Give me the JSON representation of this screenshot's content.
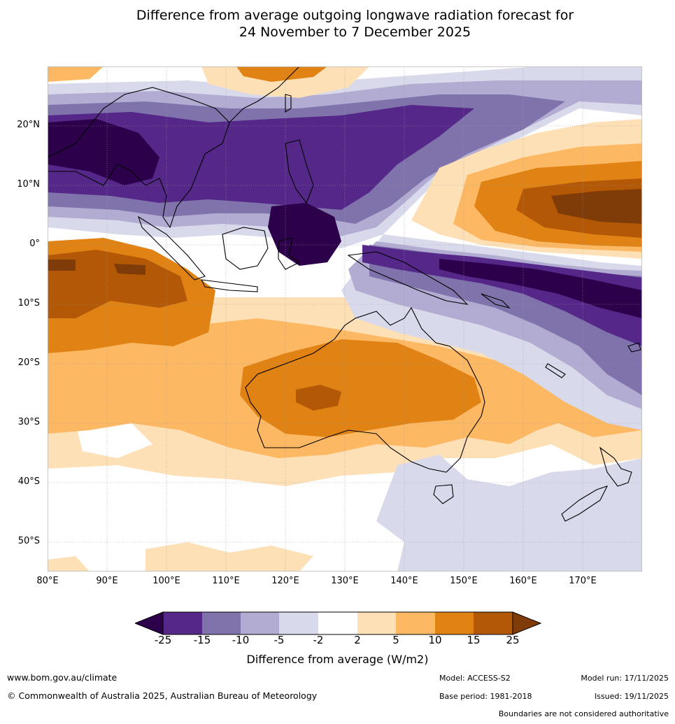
{
  "title": {
    "line1": "Difference from average outgoing longwave radiation forecast for",
    "line2": "24 November to 7 December 2025"
  },
  "map": {
    "lat_labels": [
      "20°N",
      "10°N",
      "0°",
      "10°S",
      "20°S",
      "30°S",
      "40°S",
      "50°S"
    ],
    "lon_labels": [
      "80°E",
      "90°E",
      "100°E",
      "110°E",
      "120°E",
      "130°E",
      "140°E",
      "150°E",
      "160°E",
      "170°E"
    ],
    "extent": {
      "lon_min": 80,
      "lon_max": 180,
      "lat_min": -55,
      "lat_max": 30
    }
  },
  "colorbar": {
    "ticks": [
      "-25",
      "-15",
      "-10",
      "-5",
      "-2",
      "2",
      "5",
      "10",
      "15",
      "25"
    ],
    "colors": {
      "under": "#2d004b",
      "c1": "#542788",
      "c2": "#8073ac",
      "c3": "#b2abd2",
      "c4": "#d8daeb",
      "c5": "#ffffff",
      "c6": "#fee0b6",
      "c7": "#fdb863",
      "c8": "#e08214",
      "c9": "#b35806",
      "over": "#7f3b08"
    },
    "label": "Difference from average (W/m2)"
  },
  "footer": {
    "website": "www.bom.gov.au/climate",
    "copyright": "© Commonwealth of Australia 2025, Australian Bureau of Meteorology",
    "model": "Model: ACCESS-S2",
    "base_period": "Base period: 1981-2018",
    "model_run": "Model run: 17/11/2025",
    "issued": "Issued: 19/11/2025",
    "disclaimer": "Boundaries are not considered authoritative"
  }
}
